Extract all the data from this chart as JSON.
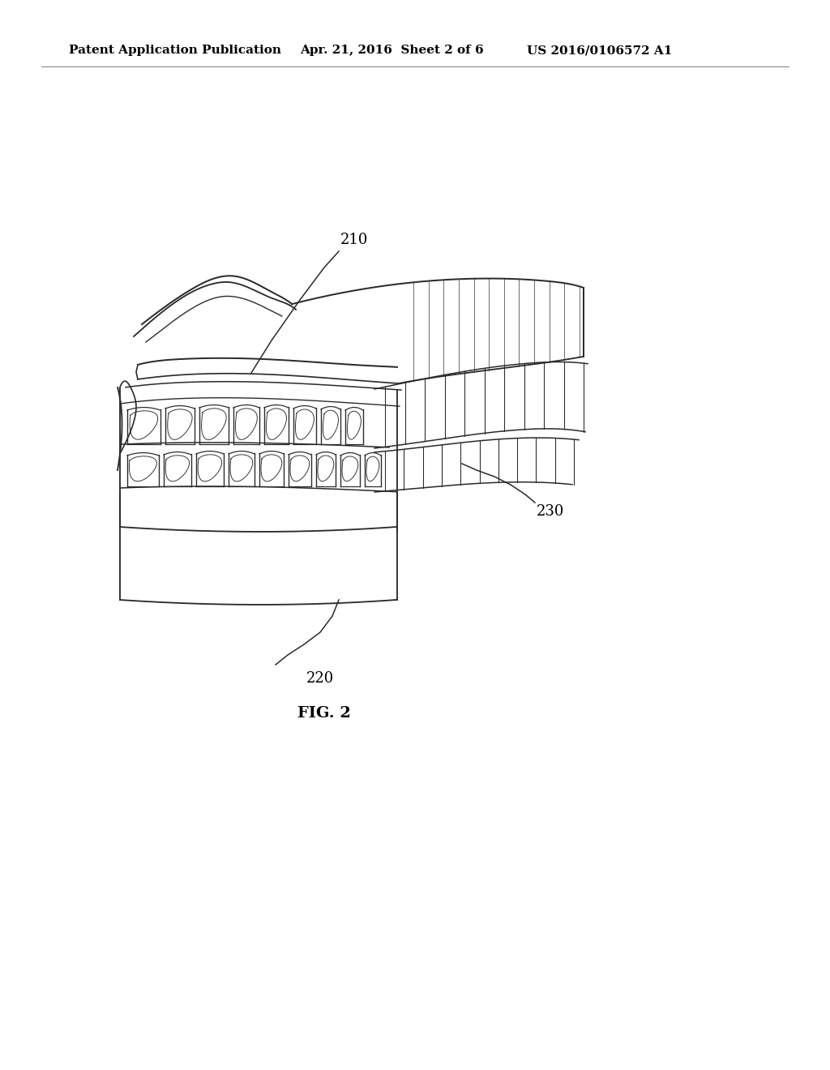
{
  "background_color": "#ffffff",
  "header_left": "Patent Application Publication",
  "header_center": "Apr. 21, 2016  Sheet 2 of 6",
  "header_right": "US 2016/0106572 A1",
  "header_fontsize": 11,
  "fig_label": "FIG. 2",
  "fig_label_fontsize": 14,
  "label_210": "210",
  "label_220": "220",
  "label_230": "230",
  "label_fontsize": 13,
  "line_color": "#2a2a2a",
  "line_width": 1.1
}
